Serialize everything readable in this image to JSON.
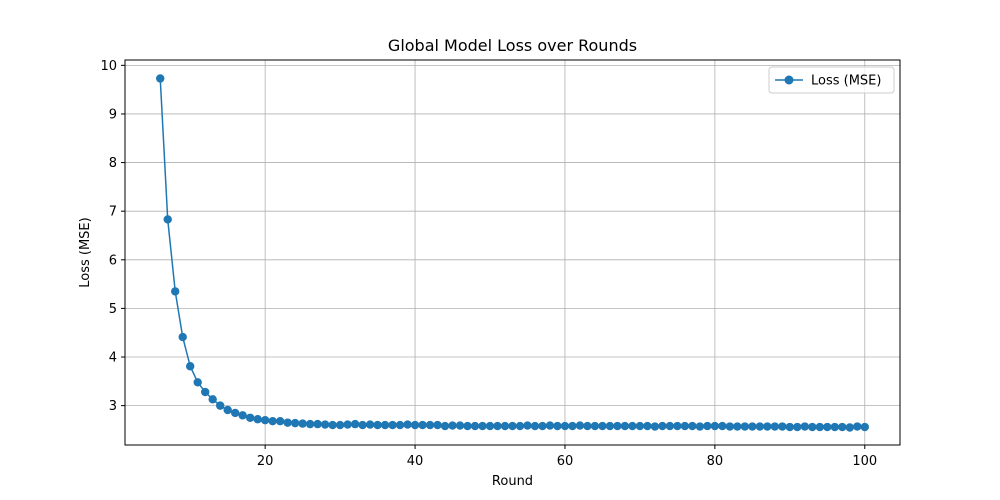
{
  "chart_data": {
    "type": "line",
    "title": "Global Model Loss over Rounds",
    "xlabel": "Round",
    "ylabel": "Loss (MSE)",
    "xlim": [
      1.3,
      104.7
    ],
    "ylim": [
      2.19,
      10.11
    ],
    "xticks": [
      20,
      40,
      60,
      80,
      100
    ],
    "yticks": [
      3,
      4,
      5,
      6,
      7,
      8,
      9,
      10
    ],
    "grid": true,
    "legend_position": "top-right",
    "series": [
      {
        "name": "Loss (MSE)",
        "color": "#1f77b4",
        "marker": "circle",
        "x": [
          6,
          7,
          8,
          9,
          10,
          11,
          12,
          13,
          14,
          15,
          16,
          17,
          18,
          19,
          20,
          21,
          22,
          23,
          24,
          25,
          26,
          27,
          28,
          29,
          30,
          31,
          32,
          33,
          34,
          35,
          36,
          37,
          38,
          39,
          40,
          41,
          42,
          43,
          44,
          45,
          46,
          47,
          48,
          49,
          50,
          51,
          52,
          53,
          54,
          55,
          56,
          57,
          58,
          59,
          60,
          61,
          62,
          63,
          64,
          65,
          66,
          67,
          68,
          69,
          70,
          71,
          72,
          73,
          74,
          75,
          76,
          77,
          78,
          79,
          80,
          81,
          82,
          83,
          84,
          85,
          86,
          87,
          88,
          89,
          90,
          91,
          92,
          93,
          94,
          95,
          96,
          97,
          98,
          99,
          100
        ],
        "y": [
          9.73,
          6.83,
          5.35,
          4.41,
          3.81,
          3.48,
          3.28,
          3.13,
          3.0,
          2.91,
          2.85,
          2.8,
          2.75,
          2.72,
          2.7,
          2.68,
          2.68,
          2.65,
          2.64,
          2.63,
          2.62,
          2.62,
          2.61,
          2.6,
          2.6,
          2.61,
          2.62,
          2.6,
          2.61,
          2.6,
          2.6,
          2.6,
          2.6,
          2.61,
          2.6,
          2.6,
          2.6,
          2.6,
          2.58,
          2.59,
          2.59,
          2.58,
          2.58,
          2.58,
          2.58,
          2.58,
          2.58,
          2.58,
          2.58,
          2.59,
          2.58,
          2.58,
          2.59,
          2.58,
          2.58,
          2.58,
          2.59,
          2.58,
          2.58,
          2.58,
          2.58,
          2.58,
          2.58,
          2.58,
          2.58,
          2.58,
          2.57,
          2.58,
          2.58,
          2.58,
          2.58,
          2.58,
          2.57,
          2.58,
          2.58,
          2.58,
          2.57,
          2.57,
          2.57,
          2.57,
          2.57,
          2.57,
          2.57,
          2.57,
          2.56,
          2.56,
          2.57,
          2.56,
          2.56,
          2.56,
          2.56,
          2.56,
          2.55,
          2.57,
          2.56
        ]
      }
    ]
  }
}
